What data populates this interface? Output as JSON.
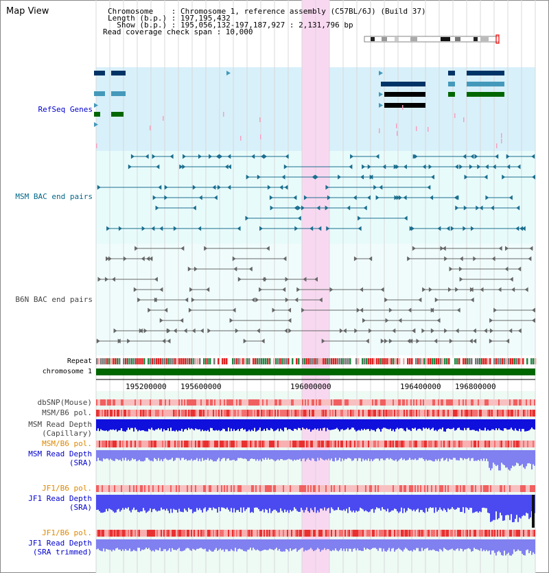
{
  "window": {
    "title": "Map View"
  },
  "header": {
    "lines": [
      "Chromosome    : Chromosome 1, reference assembly (C57BL/6J) (Build 37)",
      "Length (b.p.) : 197,195,432",
      "  Show (b.p.) : 195,056,132-197,187,927 : 2,131,796 bp",
      "Read coverage check span : 10,000"
    ]
  },
  "colors": {
    "refseq_bg": "#d8f0fa",
    "bac_bg": "#e8fbfb",
    "highlight": "#f8d8f0",
    "refseq_label": "#0000cc",
    "msm_label": "#006688",
    "b6n_label": "#444444",
    "orange_label": "#dd8800",
    "blue_label": "#0000cc",
    "gene_dark": "#003366",
    "gene_mid": "#4499bb",
    "gene_green": "#006600",
    "bac_teal": "#1a6e8e",
    "bac_gray": "#666666",
    "chromosome_bar": "#006600"
  },
  "tracks": {
    "refseq": "RefSeq Genes",
    "msm_bac": "MSM BAC end pairs",
    "b6n_bac": "B6N BAC end pairs",
    "repeat": "Repeat",
    "chromosome": "chromosome 1",
    "dbsnp": "dbSNP(Mouse)",
    "msm_b6_pol_1": "MSM/B6 pol.",
    "msm_depth_cap_1": "MSM Read Depth",
    "msm_depth_cap_2": "(Capillary)",
    "msm_b6_pol_2": "MSM/B6 pol.",
    "msm_depth_sra_1": "MSM Read Depth",
    "msm_depth_sra_2": "(SRA)",
    "jf1_b6_pol_1": "JF1/B6 pol.",
    "jf1_depth_sra_1": "JF1 Read Depth",
    "jf1_depth_sra_2": "(SRA)",
    "jf1_b6_pol_2": "JF1/B6 pol.",
    "jf1_depth_trim_1": "JF1 Read Depth",
    "jf1_depth_trim_2": "(SRA trimmed)"
  },
  "axis": {
    "ticks": [
      "195200000",
      "195600000",
      "196000000",
      "196400000",
      "196800000"
    ]
  },
  "icons": {
    "ideogram": "chromosome-ideogram-icon"
  }
}
